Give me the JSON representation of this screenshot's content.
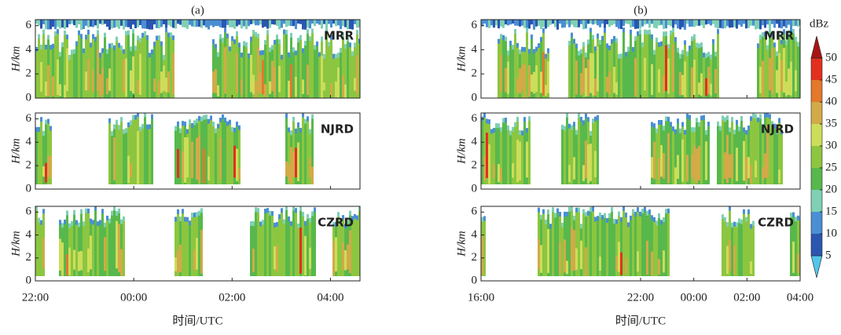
{
  "chart_data": [
    {
      "type": "contour",
      "title": "(a)",
      "label": "MRR",
      "ylabel": "H/km",
      "ylim": [
        0,
        6.5
      ],
      "yticks": [
        0,
        2,
        4,
        6
      ],
      "xlim": [
        22,
        28.6
      ],
      "xticks": [
        22,
        24,
        26,
        28
      ]
    },
    {
      "type": "contour",
      "label": "NJRD",
      "ylabel": "H/km",
      "ylim": [
        0,
        6.5
      ],
      "yticks": [
        0,
        2,
        4,
        6
      ],
      "xlim": [
        22,
        28.6
      ],
      "xticks": [
        22,
        24,
        26,
        28
      ]
    },
    {
      "type": "contour",
      "label": "CZRD",
      "ylabel": "H/km",
      "ylim": [
        0,
        6.5
      ],
      "yticks": [
        0,
        2,
        4,
        6
      ],
      "xlim": [
        22,
        28.6
      ],
      "xlabel": "时间/UTC",
      "xticks": [
        {
          "value": 22,
          "label": "22:00"
        },
        {
          "value": 24,
          "label": "00:00"
        },
        {
          "value": 26,
          "label": "02:00"
        },
        {
          "value": 28,
          "label": "04:00"
        }
      ]
    },
    {
      "type": "contour",
      "title": "(b)",
      "label": "MRR",
      "ylabel": "H/km",
      "ylim": [
        0,
        6.5
      ],
      "yticks": [
        0,
        2,
        4,
        6
      ],
      "xlim": [
        16,
        28
      ],
      "xticks": [
        16,
        22,
        24,
        26,
        28
      ]
    },
    {
      "type": "contour",
      "label": "NJRD",
      "ylabel": "H/km",
      "ylim": [
        0,
        6.5
      ],
      "yticks": [
        0,
        2,
        4,
        6
      ],
      "xlim": [
        16,
        28
      ],
      "xticks": [
        16,
        22,
        24,
        26,
        28
      ]
    },
    {
      "type": "contour",
      "label": "CZRD",
      "ylabel": "H/km",
      "ylim": [
        0,
        6.5
      ],
      "yticks": [
        0,
        2,
        4,
        6
      ],
      "xlim": [
        16,
        28
      ],
      "xlabel": "时间/UTC",
      "xticks": [
        {
          "value": 16,
          "label": "16:00"
        },
        {
          "value": 22,
          "label": "22:00"
        },
        {
          "value": 24,
          "label": "00:00"
        },
        {
          "value": 26,
          "label": "02:00"
        },
        {
          "value": 28,
          "label": "04:00"
        }
      ]
    }
  ],
  "colorbar": {
    "label": "dBz",
    "lim": [
      0,
      55
    ],
    "ticks": [
      5,
      10,
      15,
      20,
      25,
      30,
      35,
      40,
      45,
      50
    ],
    "colors": [
      "#52c6ea",
      "#2b56b0",
      "#4a8fd4",
      "#7fd0b4",
      "#58b84c",
      "#8cc640",
      "#cddd5a",
      "#d2aa48",
      "#e4782c",
      "#e2301e",
      "#a81414"
    ]
  }
}
